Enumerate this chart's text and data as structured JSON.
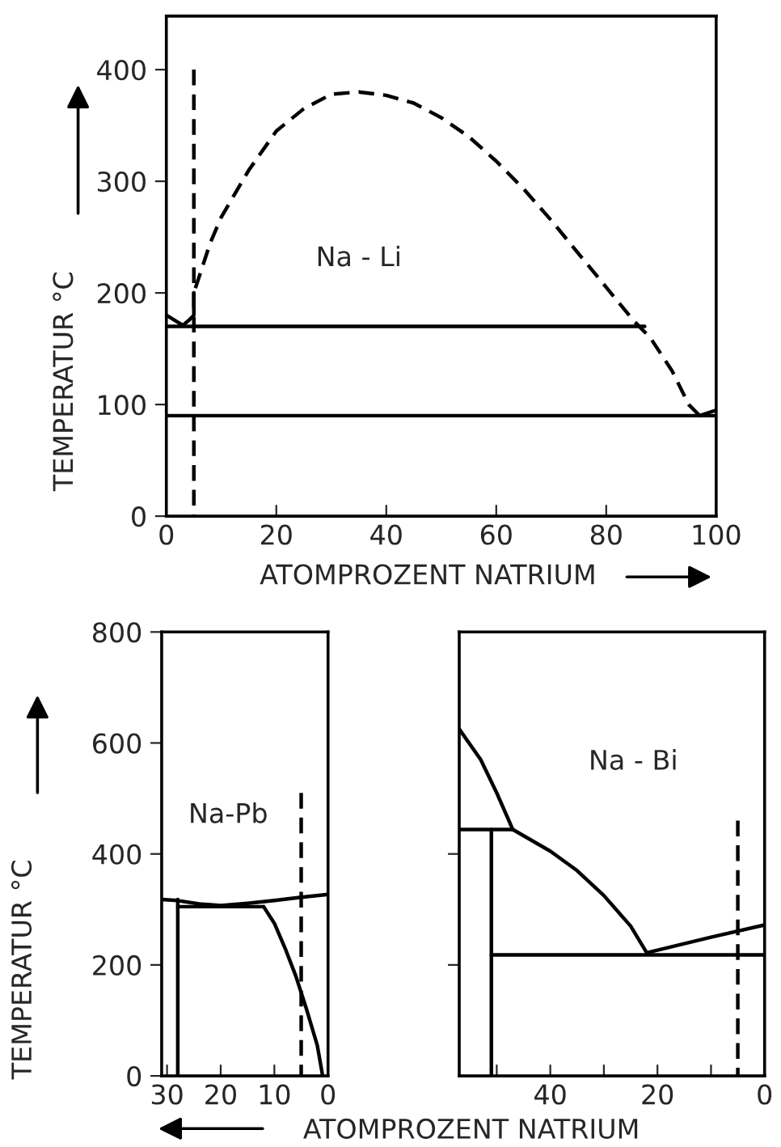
{
  "chart_data": [
    {
      "type": "line",
      "ylabel": "TEMPERATUR °C",
      "xlabel": "ATOMPROZENT NATRIUM",
      "annotations": [
        "Na - Li"
      ],
      "xlim": [
        0,
        100
      ],
      "ylim": [
        0,
        448
      ],
      "xticks": [
        0,
        20,
        40,
        60,
        80,
        100
      ],
      "yticks": [
        0,
        100,
        200,
        300,
        400
      ],
      "grid": false,
      "legend": false,
      "series": [
        {
          "color": "#000000",
          "line_style": "dashed",
          "x": [
            5,
            6,
            8,
            10,
            15,
            20,
            25,
            30,
            35,
            40,
            45,
            50,
            55,
            60,
            65,
            70,
            75,
            80,
            85,
            88,
            92,
            95,
            97
          ],
          "values": [
            200,
            215,
            245,
            268,
            310,
            345,
            365,
            378,
            380,
            377,
            370,
            357,
            340,
            318,
            293,
            265,
            235,
            205,
            175,
            160,
            130,
            100,
            90
          ]
        },
        {
          "color": "#000000",
          "line_style": "solid",
          "x": [
            0,
            87
          ],
          "values": [
            170,
            170
          ]
        },
        {
          "color": "#000000",
          "line_style": "solid",
          "x": [
            0,
            100
          ],
          "values": [
            90,
            90
          ]
        },
        {
          "color": "#000000",
          "line_style": "solid",
          "x": [
            0,
            3,
            4,
            5,
            5
          ],
          "values": [
            180,
            171,
            175,
            180,
            200
          ]
        },
        {
          "color": "#000000",
          "line_style": "solid",
          "x": [
            97,
            100
          ],
          "values": [
            90,
            95
          ]
        },
        {
          "color": "#000000",
          "line_style": "dashed",
          "x": [
            5,
            5
          ],
          "values": [
            0,
            400
          ]
        }
      ]
    },
    {
      "type": "line",
      "ylabel": "TEMPERATUR °C",
      "annotations": [
        "Na-Pb"
      ],
      "xlim": [
        31,
        0
      ],
      "ylim": [
        0,
        800
      ],
      "xticks": [
        30,
        20,
        10,
        0
      ],
      "yticks": [
        0,
        200,
        400,
        600,
        800
      ],
      "grid": false,
      "legend": false,
      "series": [
        {
          "color": "#000000",
          "line_style": "solid",
          "x": [
            31,
            28,
            24,
            20,
            15,
            10,
            5,
            0
          ],
          "values": [
            318,
            316,
            310,
            307,
            311,
            316,
            322,
            327
          ]
        },
        {
          "color": "#000000",
          "line_style": "solid",
          "x": [
            28,
            12
          ],
          "values": [
            305,
            305
          ]
        },
        {
          "color": "#000000",
          "line_style": "solid",
          "x": [
            28,
            28
          ],
          "values": [
            0,
            318
          ]
        },
        {
          "color": "#000000",
          "line_style": "solid",
          "x": [
            12,
            10,
            8,
            6,
            4,
            2,
            1
          ],
          "values": [
            305,
            275,
            230,
            180,
            120,
            55,
            0
          ]
        },
        {
          "color": "#000000",
          "line_style": "dashed",
          "x": [
            5,
            5
          ],
          "values": [
            0,
            510
          ]
        }
      ]
    },
    {
      "type": "line",
      "xlabel": "ATOMPROZENT NATRIUM",
      "annotations": [
        "Na - Bi"
      ],
      "xlim": [
        57,
        0
      ],
      "ylim": [
        0,
        800
      ],
      "xticks": [
        {
          "value": 50,
          "label": null
        },
        40,
        {
          "value": 30,
          "label": null
        },
        20,
        {
          "value": 10,
          "label": null
        },
        0
      ],
      "yticks": [
        {
          "value": 200,
          "label": null
        },
        {
          "value": 400,
          "label": null
        }
      ],
      "tick_labels": "x",
      "grid": false,
      "legend": false,
      "series": [
        {
          "color": "#000000",
          "line_style": "solid",
          "x": [
            57,
            53,
            50,
            47
          ],
          "values": [
            625,
            570,
            510,
            444
          ]
        },
        {
          "color": "#000000",
          "line_style": "solid",
          "x": [
            57,
            47
          ],
          "values": [
            444,
            444
          ]
        },
        {
          "color": "#000000",
          "line_style": "solid",
          "x": [
            47,
            40,
            35,
            30,
            25,
            22
          ],
          "values": [
            444,
            405,
            370,
            325,
            270,
            222
          ]
        },
        {
          "color": "#000000",
          "line_style": "solid",
          "x": [
            22,
            10,
            0
          ],
          "values": [
            222,
            250,
            272
          ]
        },
        {
          "color": "#000000",
          "line_style": "solid",
          "x": [
            51,
            0
          ],
          "values": [
            218,
            218
          ]
        },
        {
          "color": "#000000",
          "line_style": "solid",
          "x": [
            51,
            51
          ],
          "values": [
            0,
            444
          ]
        },
        {
          "color": "#000000",
          "line_style": "dashed",
          "x": [
            5,
            5
          ],
          "values": [
            0,
            460
          ]
        }
      ]
    }
  ]
}
